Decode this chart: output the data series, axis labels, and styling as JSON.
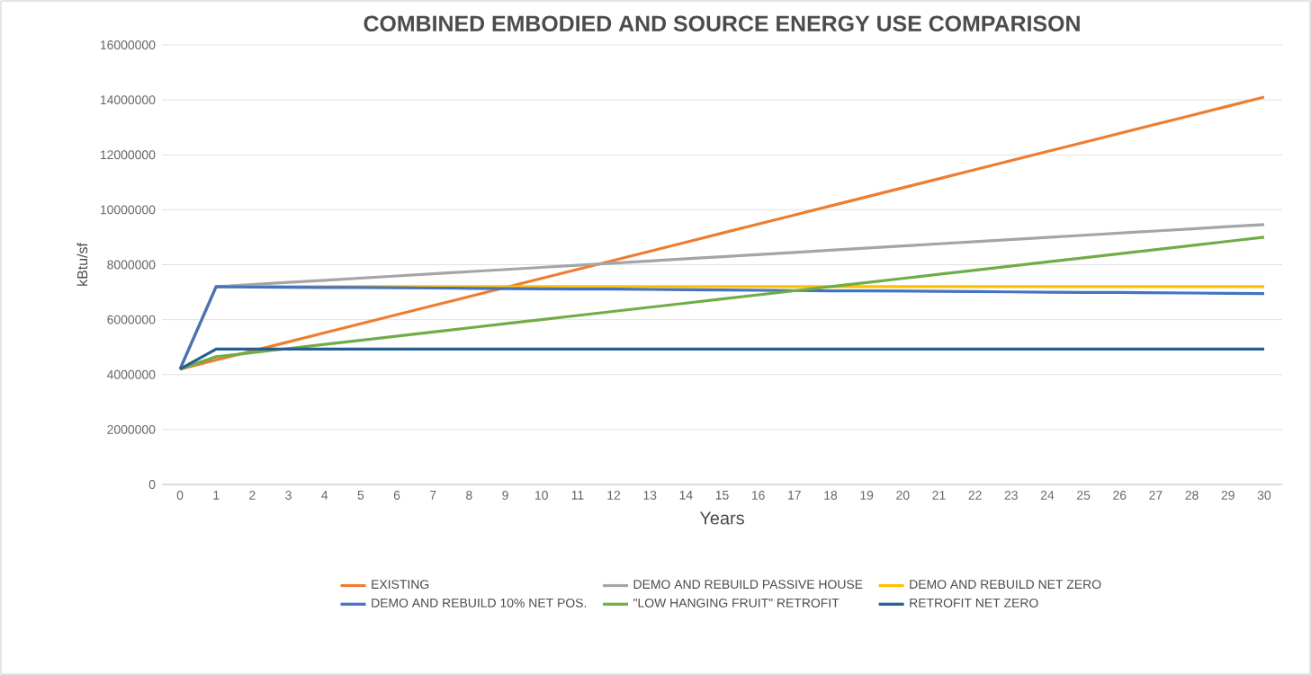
{
  "chart_data": {
    "type": "line",
    "title": "COMBINED EMBODIED AND SOURCE ENERGY USE COMPARISON",
    "xlabel": "Years",
    "ylabel": "kBtu/sf",
    "categories": [
      "0",
      "1",
      "2",
      "3",
      "4",
      "5",
      "6",
      "7",
      "8",
      "9",
      "10",
      "11",
      "12",
      "13",
      "14",
      "15",
      "16",
      "17",
      "18",
      "19",
      "20",
      "21",
      "22",
      "23",
      "24",
      "25",
      "26",
      "27",
      "28",
      "29",
      "30"
    ],
    "ylim": [
      0,
      16000000
    ],
    "yticks": [
      0,
      2000000,
      4000000,
      6000000,
      8000000,
      10000000,
      12000000,
      14000000,
      16000000
    ],
    "grid": "y",
    "legend": "bottom",
    "marker": "none",
    "line_style": "solid",
    "series": [
      {
        "name": "EXISTING",
        "color": "#ed7d31",
        "values": [
          4200000,
          4530000,
          4860000,
          5190000,
          5520000,
          5850000,
          6180000,
          6510000,
          6840000,
          7170000,
          7500000,
          7830000,
          8160000,
          8490000,
          8820000,
          9150000,
          9480000,
          9810000,
          10140000,
          10470000,
          10800000,
          11130000,
          11460000,
          11790000,
          12120000,
          12450000,
          12780000,
          13110000,
          13440000,
          13770000,
          14100000
        ]
      },
      {
        "name": "DEMO AND REBUILD PASSIVE HOUSE",
        "color": "#a5a5a5",
        "values": [
          4200000,
          7200000,
          7278000,
          7356000,
          7434000,
          7512000,
          7590000,
          7668000,
          7746000,
          7824000,
          7902000,
          7980000,
          8058000,
          8136000,
          8214000,
          8292000,
          8370000,
          8448000,
          8526000,
          8604000,
          8682000,
          8760000,
          8838000,
          8916000,
          8994000,
          9072000,
          9150000,
          9228000,
          9306000,
          9384000,
          9462000
        ]
      },
      {
        "name": "DEMO AND REBUILD NET ZERO",
        "color": "#ffc000",
        "values": [
          4200000,
          7200000,
          7200000,
          7200000,
          7200000,
          7200000,
          7200000,
          7200000,
          7200000,
          7200000,
          7200000,
          7200000,
          7200000,
          7200000,
          7200000,
          7200000,
          7200000,
          7200000,
          7200000,
          7200000,
          7200000,
          7200000,
          7200000,
          7200000,
          7200000,
          7200000,
          7200000,
          7200000,
          7200000,
          7200000,
          7200000
        ]
      },
      {
        "name": "DEMO AND REBUILD 10% NET POS.",
        "color": "#4472c4",
        "values": [
          4200000,
          7200000,
          7190000,
          7180000,
          7170000,
          7170000,
          7160000,
          7150000,
          7140000,
          7130000,
          7120000,
          7110000,
          7110000,
          7100000,
          7090000,
          7080000,
          7070000,
          7060000,
          7050000,
          7050000,
          7040000,
          7030000,
          7020000,
          7010000,
          7000000,
          6990000,
          6990000,
          6980000,
          6970000,
          6960000,
          6950000
        ]
      },
      {
        "name": "\"LOW HANGING FRUIT\" RETROFIT",
        "color": "#70ad47",
        "values": [
          4200000,
          4650000,
          4800000,
          4950000,
          5100000,
          5250000,
          5400000,
          5550000,
          5700000,
          5850000,
          6000000,
          6150000,
          6300000,
          6450000,
          6600000,
          6750000,
          6900000,
          7050000,
          7200000,
          7350000,
          7500000,
          7650000,
          7800000,
          7950000,
          8100000,
          8250000,
          8400000,
          8550000,
          8700000,
          8850000,
          9000000
        ]
      },
      {
        "name": "RETROFIT NET ZERO",
        "color": "#255e91",
        "values": [
          4200000,
          4930000,
          4930000,
          4930000,
          4930000,
          4930000,
          4930000,
          4930000,
          4930000,
          4930000,
          4930000,
          4930000,
          4930000,
          4930000,
          4930000,
          4930000,
          4930000,
          4930000,
          4930000,
          4930000,
          4930000,
          4930000,
          4930000,
          4930000,
          4930000,
          4930000,
          4930000,
          4930000,
          4930000,
          4930000,
          4930000
        ]
      }
    ]
  }
}
